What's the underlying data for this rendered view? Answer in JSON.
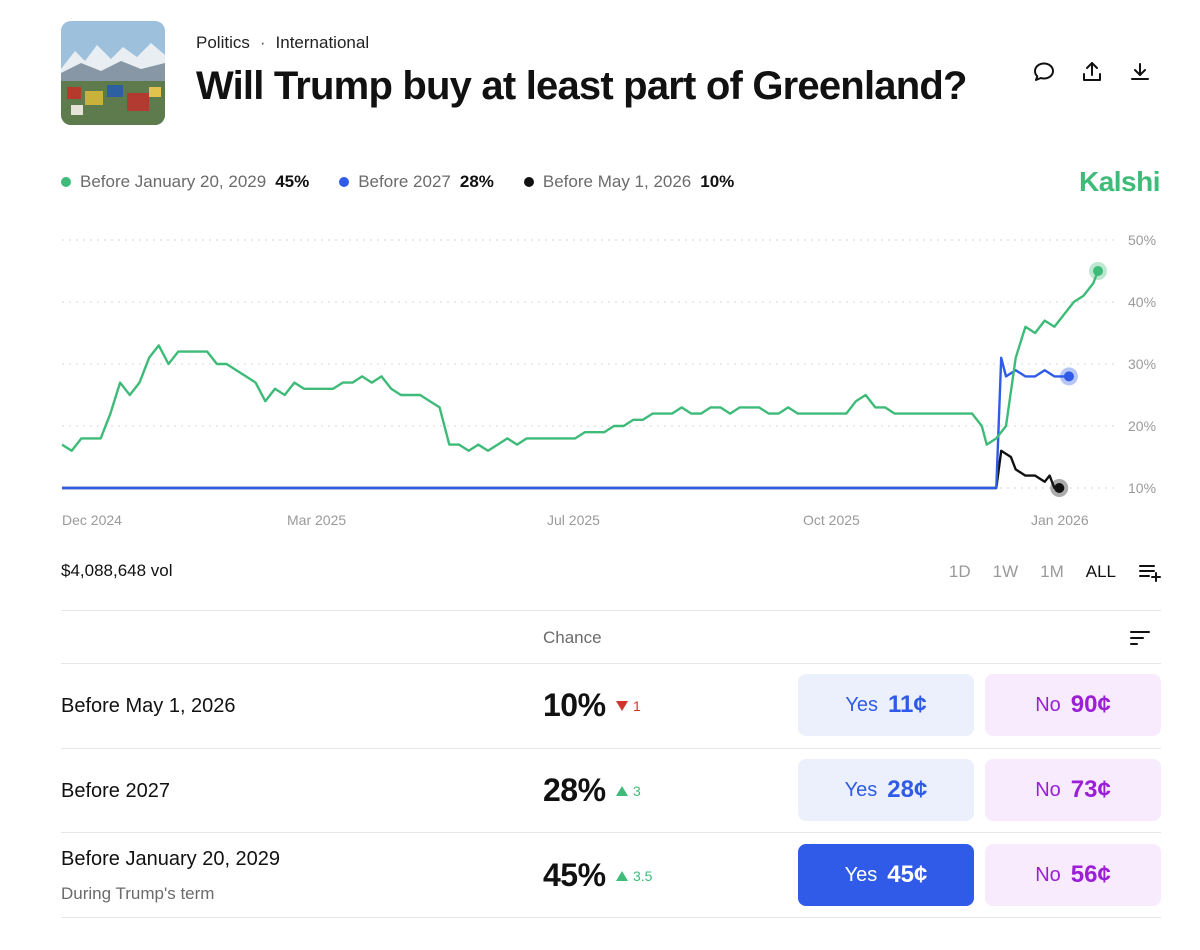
{
  "header": {
    "crumbs": [
      "Politics",
      "International"
    ],
    "title": "Will Trump buy at least part of Greenland?"
  },
  "legend": [
    {
      "label": "Before January 20, 2029",
      "pct": "45%",
      "color": "#3ebb78"
    },
    {
      "label": "Before 2027",
      "pct": "28%",
      "color": "#2f5be8"
    },
    {
      "label": "Before May 1, 2026",
      "pct": "10%",
      "color": "#111111"
    }
  ],
  "brand": "Kalshi",
  "chart_data": {
    "type": "line",
    "y_ticks": [
      "50%",
      "40%",
      "30%",
      "20%",
      "10%"
    ],
    "ylim": [
      10,
      50
    ],
    "x_ticks": [
      "Dec 2024",
      "Mar 2025",
      "Jul 2025",
      "Oct 2025",
      "Jan 2026"
    ],
    "series": [
      {
        "name": "Before January 20, 2029",
        "color": "#3ebb78",
        "points": [
          [
            0,
            17
          ],
          [
            2,
            16
          ],
          [
            4,
            18
          ],
          [
            6,
            18
          ],
          [
            8,
            18
          ],
          [
            10,
            22
          ],
          [
            12,
            27
          ],
          [
            14,
            25
          ],
          [
            16,
            27
          ],
          [
            18,
            31
          ],
          [
            20,
            33
          ],
          [
            22,
            30
          ],
          [
            24,
            32
          ],
          [
            26,
            32
          ],
          [
            28,
            32
          ],
          [
            30,
            32
          ],
          [
            32,
            30
          ],
          [
            34,
            30
          ],
          [
            36,
            29
          ],
          [
            38,
            28
          ],
          [
            40,
            27
          ],
          [
            42,
            24
          ],
          [
            44,
            26
          ],
          [
            46,
            25
          ],
          [
            48,
            27
          ],
          [
            50,
            26
          ],
          [
            52,
            26
          ],
          [
            54,
            26
          ],
          [
            56,
            26
          ],
          [
            58,
            27
          ],
          [
            60,
            27
          ],
          [
            62,
            28
          ],
          [
            64,
            27
          ],
          [
            66,
            28
          ],
          [
            68,
            26
          ],
          [
            70,
            25
          ],
          [
            72,
            25
          ],
          [
            74,
            25
          ],
          [
            76,
            24
          ],
          [
            78,
            23
          ],
          [
            80,
            17
          ],
          [
            82,
            17
          ],
          [
            84,
            16
          ],
          [
            86,
            17
          ],
          [
            88,
            16
          ],
          [
            90,
            17
          ],
          [
            92,
            18
          ],
          [
            94,
            17
          ],
          [
            96,
            18
          ],
          [
            98,
            18
          ],
          [
            100,
            18
          ],
          [
            102,
            18
          ],
          [
            104,
            18
          ],
          [
            106,
            18
          ],
          [
            108,
            19
          ],
          [
            110,
            19
          ],
          [
            112,
            19
          ],
          [
            114,
            20
          ],
          [
            116,
            20
          ],
          [
            118,
            21
          ],
          [
            120,
            21
          ],
          [
            122,
            22
          ],
          [
            124,
            22
          ],
          [
            126,
            22
          ],
          [
            128,
            23
          ],
          [
            130,
            22
          ],
          [
            132,
            22
          ],
          [
            134,
            23
          ],
          [
            136,
            23
          ],
          [
            138,
            22
          ],
          [
            140,
            23
          ],
          [
            142,
            23
          ],
          [
            144,
            23
          ],
          [
            146,
            22
          ],
          [
            148,
            22
          ],
          [
            150,
            23
          ],
          [
            152,
            22
          ],
          [
            154,
            22
          ],
          [
            156,
            22
          ],
          [
            158,
            22
          ],
          [
            160,
            22
          ],
          [
            162,
            22
          ],
          [
            164,
            24
          ],
          [
            166,
            25
          ],
          [
            168,
            23
          ],
          [
            170,
            23
          ],
          [
            172,
            22
          ],
          [
            174,
            22
          ],
          [
            176,
            22
          ],
          [
            178,
            22
          ],
          [
            180,
            22
          ],
          [
            182,
            22
          ],
          [
            184,
            22
          ],
          [
            186,
            22
          ],
          [
            188,
            22
          ],
          [
            190,
            20
          ],
          [
            191,
            17
          ],
          [
            193,
            18
          ],
          [
            195,
            20
          ],
          [
            197,
            31
          ],
          [
            199,
            36
          ],
          [
            201,
            35
          ],
          [
            203,
            37
          ],
          [
            205,
            36
          ],
          [
            207,
            38
          ],
          [
            209,
            40
          ],
          [
            211,
            41
          ],
          [
            213,
            43
          ],
          [
            214,
            45
          ]
        ]
      },
      {
        "name": "Before 2027",
        "color": "#2f5be8",
        "points": [
          [
            0,
            10
          ],
          [
            193,
            10
          ],
          [
            194,
            31
          ],
          [
            195,
            28
          ],
          [
            197,
            29
          ],
          [
            199,
            28
          ],
          [
            201,
            28
          ],
          [
            203,
            29
          ],
          [
            205,
            28
          ],
          [
            207,
            28
          ],
          [
            208,
            28
          ]
        ]
      },
      {
        "name": "Before May 1, 2026",
        "color": "#111111",
        "points": [
          [
            0,
            10
          ],
          [
            193,
            10
          ],
          [
            194,
            16
          ],
          [
            196,
            15
          ],
          [
            197,
            13
          ],
          [
            199,
            12
          ],
          [
            201,
            12
          ],
          [
            203,
            11
          ],
          [
            204,
            12
          ],
          [
            205,
            10
          ],
          [
            206,
            10
          ]
        ]
      }
    ]
  },
  "volume": "$4,088,648 vol",
  "ranges": [
    {
      "label": "1D",
      "active": false
    },
    {
      "label": "1W",
      "active": false
    },
    {
      "label": "1M",
      "active": false
    },
    {
      "label": "ALL",
      "active": true
    }
  ],
  "table": {
    "chance_header": "Chance",
    "rows": [
      {
        "name": "Before May 1, 2026",
        "sub": "",
        "chance": "10%",
        "delta": "1",
        "direction": "down",
        "yes_label": "Yes",
        "yes_price": "11¢",
        "no_label": "No",
        "no_price": "90¢",
        "yes_selected": false
      },
      {
        "name": "Before 2027",
        "sub": "",
        "chance": "28%",
        "delta": "3",
        "direction": "up",
        "yes_label": "Yes",
        "yes_price": "28¢",
        "no_label": "No",
        "no_price": "73¢",
        "yes_selected": false
      },
      {
        "name": "Before January 20, 2029",
        "sub": "During Trump's term",
        "chance": "45%",
        "delta": "3.5",
        "direction": "up",
        "yes_label": "Yes",
        "yes_price": "45¢",
        "no_label": "No",
        "no_price": "56¢",
        "yes_selected": true
      }
    ]
  }
}
